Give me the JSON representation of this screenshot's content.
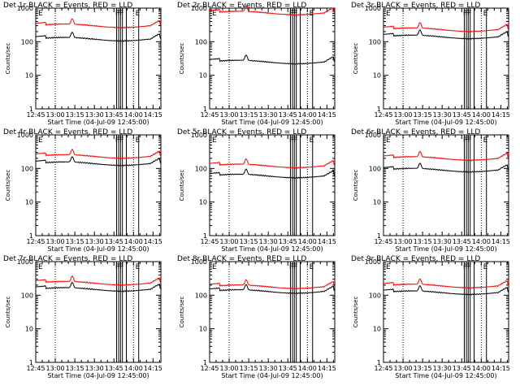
{
  "chart_data": {
    "type": "line",
    "yscale": "log",
    "ylim": [
      1,
      1000
    ],
    "xlim_minutes_from_start": [
      0,
      96
    ],
    "x_tick_labels": [
      "12:45",
      "13:00",
      "13:15",
      "13:30",
      "13:45",
      "14:00",
      "14:15"
    ],
    "y_tick_labels": [
      "1",
      "10",
      "100",
      "1000"
    ],
    "xlabel": "Start Time (04-Jul-09 12:45:00)",
    "ylabel": "Counts/sec",
    "legend_text": "BLACK = Events, RED = LLD",
    "flag_labels": [
      "F",
      "F",
      "F",
      "E"
    ],
    "colors": {
      "events": "#000000",
      "lld": "#ff0000"
    },
    "panels": [
      {
        "title": "Det 1r",
        "events_baseline": 120,
        "lld_baseline": 300
      },
      {
        "title": "Det 2r",
        "events_baseline": 25,
        "lld_baseline": 720
      },
      {
        "title": "Det 3r",
        "events_baseline": 140,
        "lld_baseline": 230
      },
      {
        "title": "Det 4r",
        "events_baseline": 140,
        "lld_baseline": 230
      },
      {
        "title": "Det 5r",
        "events_baseline": 60,
        "lld_baseline": 120
      },
      {
        "title": "Det 6r",
        "events_baseline": 90,
        "lld_baseline": 200
      },
      {
        "title": "Det 7r",
        "events_baseline": 150,
        "lld_baseline": 230
      },
      {
        "title": "Det 8r",
        "events_baseline": 130,
        "lld_baseline": 180
      },
      {
        "title": "Det 9r",
        "events_baseline": 120,
        "lld_baseline": 190
      }
    ]
  }
}
